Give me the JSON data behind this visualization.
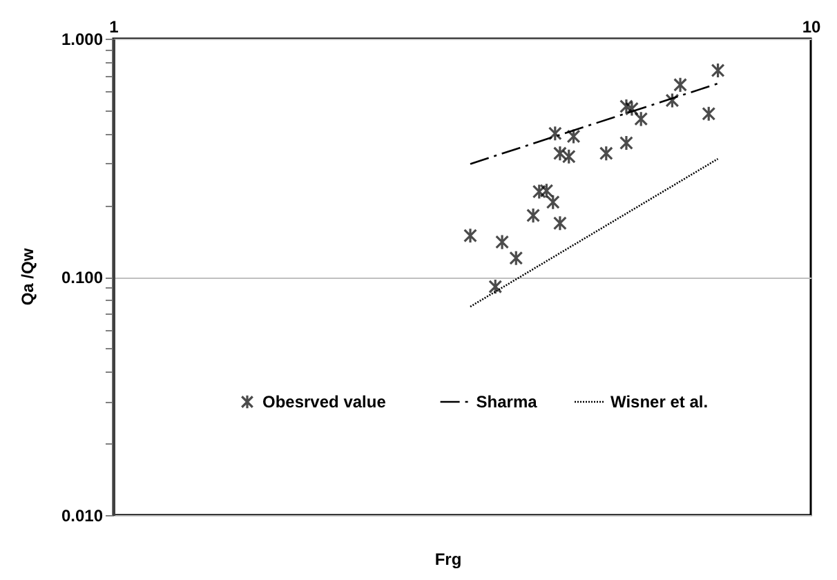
{
  "chart_data": {
    "type": "scatter",
    "xlabel": "Frg",
    "ylabel": "Qa /Qw",
    "log": "xy",
    "xlim": [
      1,
      10
    ],
    "ylim": [
      0.01,
      1
    ],
    "xticks": [
      1,
      10
    ],
    "yticks": [
      {
        "value": 0.01,
        "label": "0.010"
      },
      {
        "value": 0.02,
        "label": null
      },
      {
        "value": 0.03,
        "label": null
      },
      {
        "value": 0.04,
        "label": null
      },
      {
        "value": 0.05,
        "label": null
      },
      {
        "value": 0.06,
        "label": null
      },
      {
        "value": 0.07,
        "label": null
      },
      {
        "value": 0.08,
        "label": null
      },
      {
        "value": 0.09,
        "label": null
      },
      {
        "value": 0.1,
        "label": "0.100"
      },
      {
        "value": 0.2,
        "label": null
      },
      {
        "value": 0.3,
        "label": null
      },
      {
        "value": 0.4,
        "label": null
      },
      {
        "value": 0.5,
        "label": null
      },
      {
        "value": 0.6,
        "label": null
      },
      {
        "value": 0.7,
        "label": null
      },
      {
        "value": 0.8,
        "label": null
      },
      {
        "value": 0.9,
        "label": null
      },
      {
        "value": 1,
        "label": "1.000"
      }
    ],
    "grid": "y",
    "legend": "bottom",
    "series": [
      {
        "name": "Obesrved value",
        "type": "scatter",
        "marker": "cross",
        "color": "#000000",
        "x": [
          3.25,
          3.53,
          3.61,
          3.78,
          4.0,
          4.08,
          4.18,
          4.27,
          4.37,
          4.3,
          4.37,
          4.5,
          4.57,
          5.09,
          5.44,
          5.44,
          5.54,
          5.71,
          6.33,
          6.5,
          7.14,
          7.36
        ],
        "values": [
          0.149,
          0.091,
          0.14,
          0.12,
          0.181,
          0.228,
          0.23,
          0.206,
          0.168,
          0.4,
          0.33,
          0.32,
          0.389,
          0.33,
          0.365,
          0.52,
          0.508,
          0.46,
          0.55,
          0.64,
          0.484,
          0.736
        ]
      },
      {
        "name": "Sharma",
        "type": "line",
        "line_style": "dashed",
        "color": "#000000",
        "x": [
          3.25,
          7.36
        ],
        "values": [
          0.298,
          0.648
        ]
      },
      {
        "name": "Wisner et al.",
        "type": "line",
        "line_style": "dotted",
        "color": "#000000",
        "x": [
          3.25,
          7.36
        ],
        "values": [
          0.075,
          0.313
        ]
      }
    ]
  }
}
